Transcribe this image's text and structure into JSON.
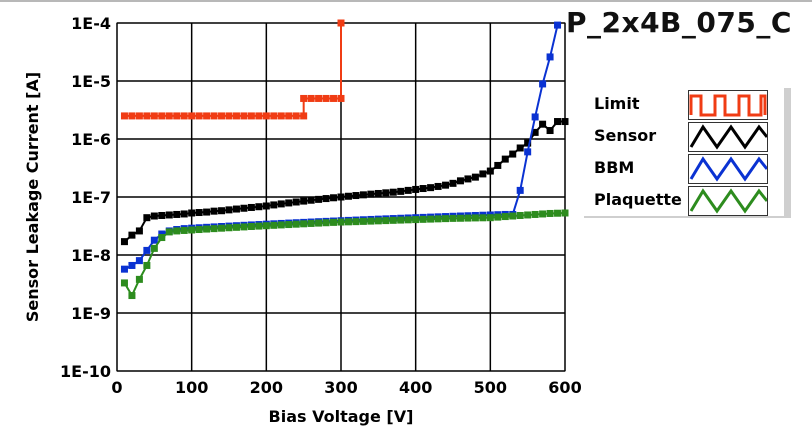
{
  "title": "P_2x4B_075_C",
  "chart_data": {
    "type": "line",
    "xlabel": "Bias Voltage [V]",
    "ylabel": "Sensor Leakage Current [A]",
    "xlim": [
      0,
      600
    ],
    "ylim": [
      1e-10,
      0.0001
    ],
    "yscale": "log",
    "grid": true,
    "legend_position": "right",
    "xticks": [
      "0",
      "100",
      "200",
      "300",
      "400",
      "500",
      "600"
    ],
    "xtick_values": [
      0,
      100,
      200,
      300,
      400,
      500,
      600
    ],
    "yticks": [
      "1E-10",
      "1E-9",
      "1E-8",
      "1E-7",
      "1E-6",
      "1E-5",
      "1E-4"
    ],
    "ytick_values": [
      1e-10,
      1e-09,
      1e-08,
      1e-07,
      1e-06,
      1e-05,
      0.0001
    ],
    "series": [
      {
        "name": "Limit",
        "color": "#f03c14",
        "step": true,
        "x": [
          10,
          20,
          30,
          40,
          50,
          60,
          70,
          80,
          90,
          100,
          110,
          120,
          130,
          140,
          150,
          160,
          170,
          180,
          190,
          200,
          210,
          220,
          230,
          240,
          250,
          250,
          260,
          270,
          280,
          290,
          300,
          300
        ],
        "y": [
          2.5e-06,
          2.5e-06,
          2.5e-06,
          2.5e-06,
          2.5e-06,
          2.5e-06,
          2.5e-06,
          2.5e-06,
          2.5e-06,
          2.5e-06,
          2.5e-06,
          2.5e-06,
          2.5e-06,
          2.5e-06,
          2.5e-06,
          2.5e-06,
          2.5e-06,
          2.5e-06,
          2.5e-06,
          2.5e-06,
          2.5e-06,
          2.5e-06,
          2.5e-06,
          2.5e-06,
          2.5e-06,
          5e-06,
          5e-06,
          5e-06,
          5e-06,
          5e-06,
          5e-06,
          0.0001
        ]
      },
      {
        "name": "Sensor",
        "color": "#000000",
        "x_start": 10,
        "x_step": 10,
        "y": [
          1.7e-08,
          2.2e-08,
          2.6e-08,
          4.4e-08,
          4.7e-08,
          4.8e-08,
          4.9e-08,
          5e-08,
          5.1e-08,
          5.3e-08,
          5.4e-08,
          5.5e-08,
          5.7e-08,
          5.8e-08,
          6e-08,
          6.2e-08,
          6.4e-08,
          6.6e-08,
          6.8e-08,
          7e-08,
          7.3e-08,
          7.6e-08,
          7.9e-08,
          8.2e-08,
          8.5e-08,
          8.8e-08,
          9.1e-08,
          9.4e-08,
          9.7e-08,
          1e-07,
          1.03e-07,
          1.06e-07,
          1.09e-07,
          1.12e-07,
          1.15e-07,
          1.18e-07,
          1.21e-07,
          1.25e-07,
          1.3e-07,
          1.35e-07,
          1.4e-07,
          1.45e-07,
          1.52e-07,
          1.6e-07,
          1.72e-07,
          1.9e-07,
          2.05e-07,
          2.2e-07,
          2.5e-07,
          2.8e-07,
          3.5e-07,
          4.5e-07,
          5.5e-07,
          7e-07,
          8.5e-07,
          1.3e-06,
          1.8e-06,
          1.4e-06,
          2e-06,
          2e-06
        ]
      },
      {
        "name": "BBM",
        "color": "#0a32d2",
        "x_start": 10,
        "x_step": 10,
        "y": [
          5.7e-09,
          6.6e-09,
          8e-09,
          1.2e-08,
          1.8e-08,
          2.3e-08,
          2.6e-08,
          2.75e-08,
          2.85e-08,
          2.9e-08,
          2.95e-08,
          3e-08,
          3.05e-08,
          3.1e-08,
          3.15e-08,
          3.2e-08,
          3.25e-08,
          3.3e-08,
          3.35e-08,
          3.4e-08,
          3.45e-08,
          3.5e-08,
          3.55e-08,
          3.6e-08,
          3.65e-08,
          3.7e-08,
          3.75e-08,
          3.8e-08,
          3.85e-08,
          3.9e-08,
          3.95e-08,
          4e-08,
          4.05e-08,
          4.1e-08,
          4.15e-08,
          4.2e-08,
          4.25e-08,
          4.3e-08,
          4.35e-08,
          4.4e-08,
          4.45e-08,
          4.5e-08,
          4.55e-08,
          4.6e-08,
          4.65e-08,
          4.7e-08,
          4.75e-08,
          4.8e-08,
          4.85e-08,
          4.9e-08,
          4.95e-08,
          5e-08,
          5e-08,
          1.3e-07,
          6e-07,
          2.4e-06,
          8.9e-06,
          2.6e-05,
          9.2e-05
        ]
      },
      {
        "name": "Plaquette",
        "color": "#2d8c1e",
        "x_start": 10,
        "x_step": 10,
        "y": [
          3.3e-09,
          2e-09,
          3.8e-09,
          6.6e-09,
          1.3e-08,
          2e-08,
          2.5e-08,
          2.6e-08,
          2.65e-08,
          2.7e-08,
          2.75e-08,
          2.8e-08,
          2.85e-08,
          2.9e-08,
          2.95e-08,
          3e-08,
          3.05e-08,
          3.1e-08,
          3.15e-08,
          3.2e-08,
          3.25e-08,
          3.3e-08,
          3.35e-08,
          3.4e-08,
          3.45e-08,
          3.5e-08,
          3.55e-08,
          3.6e-08,
          3.65e-08,
          3.7e-08,
          3.73e-08,
          3.76e-08,
          3.8e-08,
          3.84e-08,
          3.88e-08,
          3.92e-08,
          3.96e-08,
          4e-08,
          4.04e-08,
          4.08e-08,
          4.12e-08,
          4.16e-08,
          4.2e-08,
          4.24e-08,
          4.28e-08,
          4.3e-08,
          4.33e-08,
          4.36e-08,
          4.38e-08,
          4.4e-08,
          4.5e-08,
          4.6e-08,
          4.7e-08,
          4.8e-08,
          4.9e-08,
          5e-08,
          5.1e-08,
          5.2e-08,
          5.25e-08,
          5.3e-08
        ]
      }
    ]
  }
}
